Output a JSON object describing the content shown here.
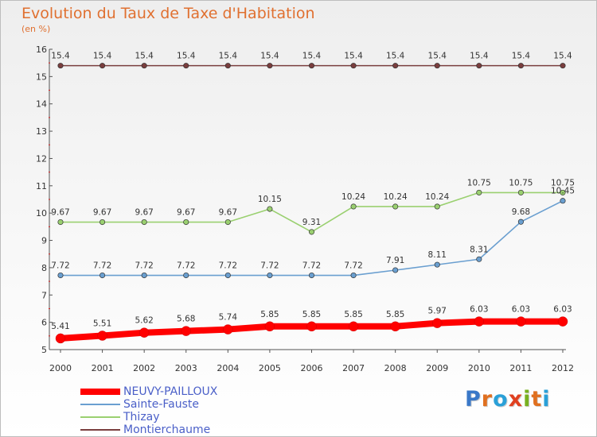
{
  "title": "Evolution du Taux de Taxe d'Habitation",
  "subtitle": "(en %)",
  "brand": {
    "text": "Proxiti",
    "letter_colors": [
      "#3a78c8",
      "#e07020",
      "#2aa0d8",
      "#e04020",
      "#78b020",
      "#e07020",
      "#2aa0d8"
    ]
  },
  "chart_data": {
    "type": "line",
    "x": [
      2000,
      2001,
      2002,
      2003,
      2004,
      2005,
      2006,
      2007,
      2008,
      2009,
      2010,
      2011,
      2012
    ],
    "ylim": [
      5,
      16
    ],
    "yticks": [
      5,
      6,
      7,
      8,
      9,
      10,
      11,
      12,
      13,
      14,
      15,
      16
    ],
    "grid": false,
    "legend_position": "bottom-left",
    "series": [
      {
        "name": "NEUVY-PAILLOUX",
        "color": "#ff0000",
        "labels": [
          "5.41",
          "5.51",
          "5.62",
          "5.68",
          "5.74",
          "5.85",
          "5.85",
          "5.85",
          "5.85",
          "5.97",
          "6.03",
          "6.03",
          "6.03"
        ],
        "values": [
          5.41,
          5.51,
          5.62,
          5.68,
          5.74,
          5.85,
          5.85,
          5.85,
          5.85,
          5.97,
          6.03,
          6.03,
          6.03
        ]
      },
      {
        "name": "Sainte-Fauste",
        "color": "#6a9fd0",
        "labels": [
          "7.72",
          "7.72",
          "7.72",
          "7.72",
          "7.72",
          "7.72",
          "7.72",
          "7.72",
          "7.91",
          "8.11",
          "8.31",
          "9.68",
          "10.45"
        ],
        "values": [
          7.72,
          7.72,
          7.72,
          7.72,
          7.72,
          7.72,
          7.72,
          7.72,
          7.91,
          8.11,
          8.31,
          9.68,
          10.45
        ]
      },
      {
        "name": "Thizay",
        "color": "#9ad070",
        "labels": [
          "9.67",
          "9.67",
          "9.67",
          "9.67",
          "9.67",
          "10.15",
          "9.31",
          "10.24",
          "10.24",
          "10.24",
          "10.75",
          "10.75",
          "10.75"
        ],
        "values": [
          9.67,
          9.67,
          9.67,
          9.67,
          9.67,
          10.15,
          9.31,
          10.24,
          10.24,
          10.24,
          10.75,
          10.75,
          10.75
        ]
      },
      {
        "name": "Montierchaume",
        "color": "#7a3e3e",
        "labels": [
          "15.4",
          "15.4",
          "15.4",
          "15.4",
          "15.4",
          "15.4",
          "15.4",
          "15.4",
          "15.4",
          "15.4",
          "15.4",
          "15.4",
          "15.4"
        ],
        "values": [
          15.4,
          15.4,
          15.4,
          15.4,
          15.4,
          15.4,
          15.4,
          15.4,
          15.4,
          15.4,
          15.4,
          15.4,
          15.4
        ]
      }
    ]
  }
}
